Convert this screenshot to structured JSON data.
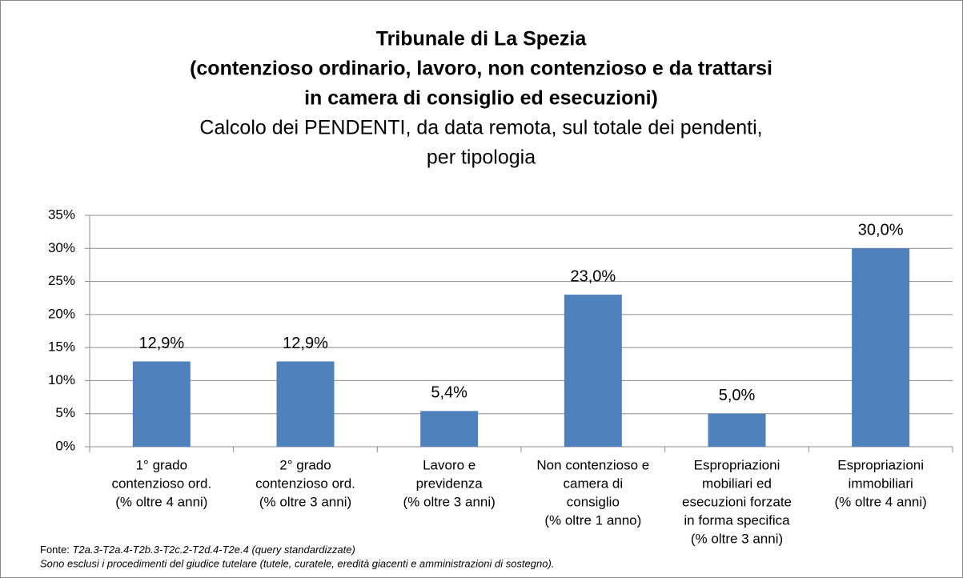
{
  "chart_data": {
    "type": "bar",
    "title": [
      "Tribunale di La Spezia",
      "(contenzioso ordinario, lavoro, non contenzioso e da trattarsi",
      "in camera di consiglio ed esecuzioni)"
    ],
    "subtitle": [
      "Calcolo dei PENDENTI, da data remota, sul totale dei pendenti,",
      "per tipologia"
    ],
    "categories": [
      [
        "1° grado",
        "contenzioso ord.",
        "(% oltre 4 anni)"
      ],
      [
        "2° grado",
        "contenzioso ord.",
        "(% oltre 3 anni)"
      ],
      [
        "Lavoro e",
        "previdenza",
        "(% oltre 3 anni)"
      ],
      [
        "Non contenzioso e",
        "camera di",
        "consiglio",
        "(% oltre 1 anno)"
      ],
      [
        "Espropriazioni",
        "mobiliari ed",
        "esecuzioni forzate",
        "in forma specifica",
        "(% oltre 3 anni)"
      ],
      [
        "Espropriazioni",
        "immobiliari",
        "(% oltre 4 anni)"
      ]
    ],
    "values": [
      12.9,
      12.9,
      5.4,
      23.0,
      5.0,
      30.0
    ],
    "value_labels": [
      "12,9%",
      "12,9%",
      "5,4%",
      "23,0%",
      "5,0%",
      "30,0%"
    ],
    "color": "#4f81bd",
    "ylim": [
      0,
      35
    ],
    "yticks": [
      {
        "value": 0,
        "label": "0%"
      },
      {
        "value": 5,
        "label": "5%"
      },
      {
        "value": 10,
        "label": "10%"
      },
      {
        "value": 15,
        "label": "15%"
      },
      {
        "value": 20,
        "label": "20%"
      },
      {
        "value": 25,
        "label": "25%"
      },
      {
        "value": 30,
        "label": "30%"
      },
      {
        "value": 35,
        "label": "35%"
      }
    ],
    "grid": true,
    "source_label": "Fonte:",
    "source": "T2a.3-T2a.4-T2b.3-T2c.2-T2d.4-T2e.4 (query standardizzate)",
    "note": "Sono esclusi i procedimenti del giudice tutelare (tutele, curatele, eredità giacenti e amministrazioni di sostegno)."
  }
}
